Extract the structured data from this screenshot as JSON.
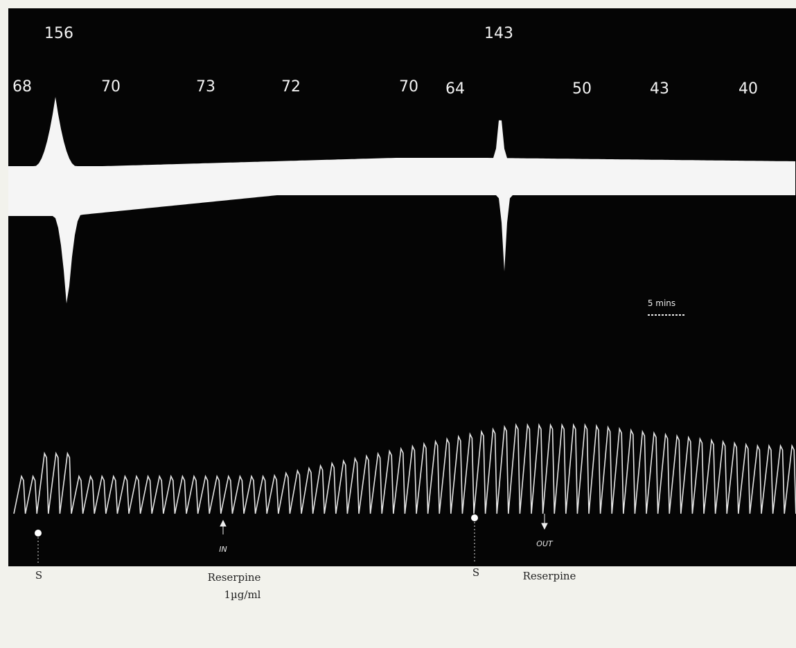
{
  "peak_labels": [
    "156",
    "143"
  ],
  "rate_labels": [
    "68",
    "70",
    "73",
    "72",
    "70",
    "64",
    "50",
    "43",
    "40"
  ],
  "scale_bar": "5 mins",
  "stimuli": [
    "S",
    "S"
  ],
  "arrows": [
    "IN",
    "OUT"
  ],
  "drug_labels": [
    "Reserpine",
    "Reserpine"
  ],
  "dose": "1µg/ml"
}
